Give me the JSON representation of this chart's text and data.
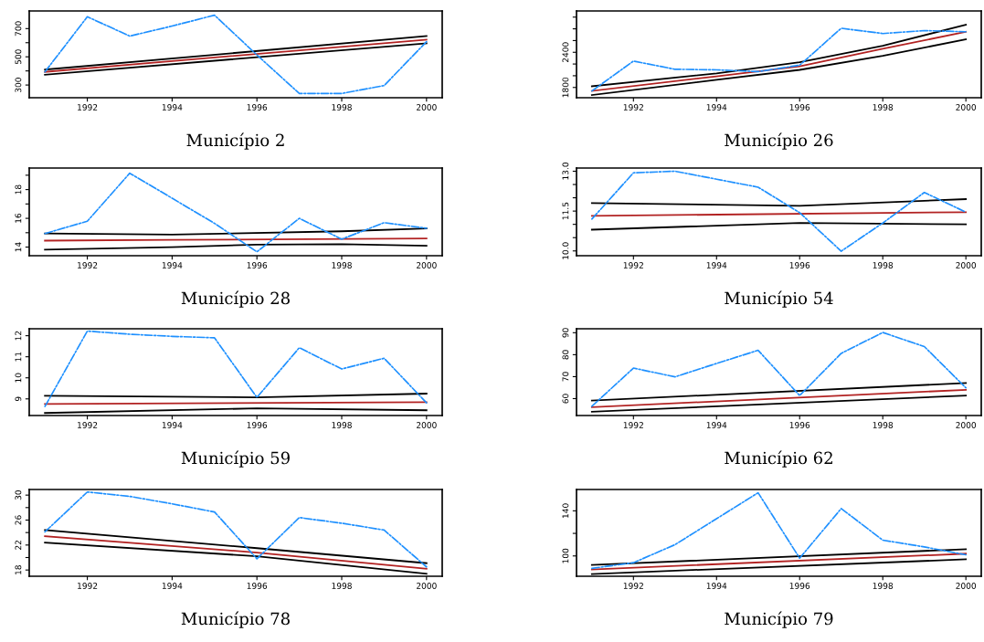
{
  "chart_data": [
    {
      "type": "line",
      "title": "Município 2",
      "xlim": [
        1990.63,
        2000.37
      ],
      "xticks": [
        1992,
        1994,
        1996,
        1998,
        2000
      ],
      "ylim": [
        210,
        825
      ],
      "yticks": [
        300,
        {
          "value": 400,
          "label": null
        },
        500,
        {
          "value": 600,
          "label": null
        },
        700
      ],
      "grid": false,
      "legend": false,
      "series": [
        {
          "color": "#1e90ff",
          "line_style": "dashdot",
          "x": [
            1991,
            1992,
            1993,
            1994,
            1995,
            1996,
            1997,
            1998,
            1999,
            2000
          ],
          "values": [
            393,
            784,
            647,
            718,
            795,
            513,
            240,
            240,
            296,
            607
          ]
        },
        {
          "color": "#000000",
          "line_style": "solid",
          "x": [
            1991,
            2000
          ],
          "values": [
            409,
            647
          ]
        },
        {
          "color": "#000000",
          "line_style": "solid",
          "x": [
            1991,
            2000
          ],
          "values": [
            373,
            596
          ]
        },
        {
          "color": "#b22222",
          "line_style": "solid",
          "x": [
            1991,
            2000
          ],
          "values": [
            393,
            622
          ]
        }
      ]
    },
    {
      "type": "line",
      "title": "Município 26",
      "xlim": [
        1990.63,
        2000.37
      ],
      "xticks": [
        1992,
        1994,
        1996,
        1998,
        2000
      ],
      "ylim": [
        1625,
        3105
      ],
      "yticks": [
        1800,
        {
          "value": 2000,
          "label": null
        },
        {
          "value": 2200,
          "label": null
        },
        2400,
        {
          "value": 2600,
          "label": null
        },
        {
          "value": 2800,
          "label": null
        },
        {
          "value": 3000,
          "label": null
        }
      ],
      "grid": false,
      "legend": false,
      "series": [
        {
          "color": "#1e90ff",
          "line_style": "dashdot",
          "x": [
            1991,
            1992,
            1993,
            1994,
            1995,
            1996,
            1997,
            1998,
            1999,
            2000
          ],
          "values": [
            1740,
            2250,
            2110,
            2100,
            2070,
            2180,
            2810,
            2720,
            2770,
            2750
          ]
        },
        {
          "color": "#000000",
          "line_style": "solid",
          "x": [
            1991,
            1994,
            1996,
            1998,
            2000
          ],
          "values": [
            1820,
            2040,
            2230,
            2510,
            2870
          ]
        },
        {
          "color": "#000000",
          "line_style": "solid",
          "x": [
            1991,
            1994,
            1996,
            1998,
            2000
          ],
          "values": [
            1670,
            1930,
            2100,
            2340,
            2620
          ]
        },
        {
          "color": "#b22222",
          "line_style": "solid",
          "x": [
            1991,
            1994,
            1996,
            1998,
            2000
          ],
          "values": [
            1740,
            1990,
            2160,
            2460,
            2750
          ]
        }
      ]
    },
    {
      "type": "line",
      "title": "Município 28",
      "xlim": [
        1990.63,
        2000.37
      ],
      "xticks": [
        1992,
        1994,
        1996,
        1998,
        2000
      ],
      "ylim": [
        13.4,
        19.5
      ],
      "yticks": [
        14,
        {
          "value": 15,
          "label": null
        },
        16,
        {
          "value": 17,
          "label": null
        },
        18,
        {
          "value": 19,
          "label": null
        }
      ],
      "grid": false,
      "legend": false,
      "series": [
        {
          "color": "#1e90ff",
          "line_style": "dashdot",
          "x": [
            1991,
            1992,
            1993,
            1994,
            1995,
            1996,
            1997,
            1998,
            1999,
            2000
          ],
          "values": [
            14.94,
            15.8,
            19.14,
            17.4,
            15.65,
            13.67,
            16.0,
            14.55,
            15.7,
            15.31
          ]
        },
        {
          "color": "#000000",
          "line_style": "solid",
          "x": [
            1991,
            1994,
            1998,
            2000
          ],
          "values": [
            14.95,
            14.87,
            15.1,
            15.3
          ]
        },
        {
          "color": "#000000",
          "line_style": "solid",
          "x": [
            1991,
            1994,
            1996,
            1998,
            2000
          ],
          "values": [
            13.82,
            14.0,
            14.17,
            14.2,
            14.09
          ]
        },
        {
          "color": "#b22222",
          "line_style": "solid",
          "x": [
            1991,
            1994,
            2000
          ],
          "values": [
            14.45,
            14.5,
            14.6
          ]
        }
      ]
    },
    {
      "type": "line",
      "title": "Município 54",
      "xlim": [
        1990.63,
        2000.37
      ],
      "xticks": [
        1992,
        1994,
        1996,
        1998,
        2000
      ],
      "ylim": [
        9.82,
        13.12
      ],
      "yticks": [
        {
          "value": 10,
          "label": "10.0"
        },
        {
          "value": 10.5,
          "label": null
        },
        {
          "value": 11,
          "label": null
        },
        11.5,
        {
          "value": 12,
          "label": null
        },
        {
          "value": 12.5,
          "label": null
        },
        {
          "value": 13,
          "label": "13.0"
        }
      ],
      "grid": false,
      "legend": false,
      "series": [
        {
          "color": "#1e90ff",
          "line_style": "dashdot",
          "x": [
            1991,
            1992,
            1993,
            1994,
            1995,
            1996,
            1997,
            1998,
            1999,
            2000
          ],
          "values": [
            11.2,
            12.94,
            13.0,
            12.7,
            12.4,
            11.44,
            9.99,
            11.05,
            12.2,
            11.46
          ]
        },
        {
          "color": "#000000",
          "line_style": "solid",
          "x": [
            1991,
            1996,
            2000
          ],
          "values": [
            11.8,
            11.7,
            11.95
          ]
        },
        {
          "color": "#000000",
          "line_style": "solid",
          "x": [
            1991,
            1996,
            2000
          ],
          "values": [
            10.8,
            11.05,
            11.0
          ]
        },
        {
          "color": "#b22222",
          "line_style": "solid",
          "x": [
            1991,
            2000
          ],
          "values": [
            11.32,
            11.46
          ]
        }
      ]
    },
    {
      "type": "line",
      "title": "Município 59",
      "xlim": [
        1990.63,
        2000.37
      ],
      "xticks": [
        1992,
        1994,
        1996,
        1998,
        2000
      ],
      "ylim": [
        8.21,
        12.33
      ],
      "yticks": [
        9,
        10,
        11,
        12
      ],
      "grid": false,
      "legend": false,
      "series": [
        {
          "color": "#1e90ff",
          "line_style": "dashdot",
          "x": [
            1991,
            1992,
            1993,
            1994,
            1995,
            1996,
            1997,
            1998,
            1999,
            2000
          ],
          "values": [
            8.64,
            12.22,
            12.07,
            11.97,
            11.9,
            9.07,
            11.43,
            10.42,
            10.93,
            8.81
          ]
        },
        {
          "color": "#000000",
          "line_style": "solid",
          "x": [
            1991,
            1996,
            2000
          ],
          "values": [
            9.15,
            9.07,
            9.25
          ]
        },
        {
          "color": "#000000",
          "line_style": "solid",
          "x": [
            1991,
            1996,
            2000
          ],
          "values": [
            8.33,
            8.55,
            8.46
          ]
        },
        {
          "color": "#b22222",
          "line_style": "solid",
          "x": [
            1991,
            2000
          ],
          "values": [
            8.76,
            8.84
          ]
        }
      ]
    },
    {
      "type": "line",
      "title": "Município 62",
      "xlim": [
        1990.63,
        2000.37
      ],
      "xticks": [
        1992,
        1994,
        1996,
        1998,
        2000
      ],
      "ylim": [
        52.3,
        91.8
      ],
      "yticks": [
        60,
        70,
        80,
        90
      ],
      "grid": false,
      "legend": false,
      "series": [
        {
          "color": "#1e90ff",
          "line_style": "dashdot",
          "x": [
            1991,
            1992,
            1993,
            1994,
            1995,
            1996,
            1997,
            1998,
            1999,
            2000
          ],
          "values": [
            56.5,
            73.9,
            69.9,
            76,
            82,
            61.4,
            80.6,
            90.1,
            83.7,
            64.9
          ]
        },
        {
          "color": "#000000",
          "line_style": "solid",
          "x": [
            1991,
            2000
          ],
          "values": [
            59.1,
            67.1
          ]
        },
        {
          "color": "#000000",
          "line_style": "solid",
          "x": [
            1991,
            2000
          ],
          "values": [
            54.0,
            61.4
          ]
        },
        {
          "color": "#b22222",
          "line_style": "solid",
          "x": [
            1991,
            2000
          ],
          "values": [
            56.1,
            64
          ]
        }
      ]
    },
    {
      "type": "line",
      "title": "Município 78",
      "xlim": [
        1990.63,
        2000.37
      ],
      "xticks": [
        1992,
        1994,
        1996,
        1998,
        2000
      ],
      "ylim": [
        17.0,
        30.9
      ],
      "yticks": [
        18,
        {
          "value": 20,
          "label": null
        },
        22,
        {
          "value": 24,
          "label": null
        },
        26,
        {
          "value": 28,
          "label": null
        },
        30
      ],
      "grid": false,
      "legend": false,
      "series": [
        {
          "color": "#1e90ff",
          "line_style": "dashdot",
          "x": [
            1991,
            1992,
            1993,
            1994,
            1995,
            1996,
            1997,
            1998,
            1999,
            2000
          ],
          "values": [
            24.1,
            30.5,
            29.8,
            28.6,
            27.3,
            19.8,
            26.4,
            25.5,
            24.4,
            18.5
          ]
        },
        {
          "color": "#000000",
          "line_style": "solid",
          "x": [
            1991,
            1996,
            2000
          ],
          "values": [
            24.4,
            21.5,
            19.1
          ]
        },
        {
          "color": "#000000",
          "line_style": "solid",
          "x": [
            1991,
            1996,
            2000
          ],
          "values": [
            22.4,
            20.2,
            17.4
          ]
        },
        {
          "color": "#b22222",
          "line_style": "solid",
          "x": [
            1991,
            1996,
            2000
          ],
          "values": [
            23.4,
            20.8,
            18.2
          ]
        }
      ]
    },
    {
      "type": "line",
      "title": "Município 79",
      "xlim": [
        1990.63,
        2000.37
      ],
      "xticks": [
        1992,
        1994,
        1996,
        1998,
        2000
      ],
      "ylim": [
        82,
        158.9
      ],
      "yticks": [
        100,
        {
          "value": 120,
          "label": null
        },
        140
      ],
      "grid": false,
      "legend": false,
      "series": [
        {
          "color": "#1e90ff",
          "line_style": "dashdot",
          "x": [
            1991,
            1992,
            1993,
            1994,
            1995,
            1996,
            1997,
            1998,
            1999,
            2000
          ],
          "values": [
            89,
            94,
            110,
            133,
            156,
            98,
            142,
            114,
            108,
            101
          ]
        },
        {
          "color": "#000000",
          "line_style": "solid",
          "x": [
            1991,
            2000
          ],
          "values": [
            92,
            106
          ]
        },
        {
          "color": "#000000",
          "line_style": "solid",
          "x": [
            1991,
            2000
          ],
          "values": [
            84,
            97
          ]
        },
        {
          "color": "#b22222",
          "line_style": "solid",
          "x": [
            1991,
            2000
          ],
          "values": [
            88,
            102
          ]
        }
      ]
    }
  ]
}
